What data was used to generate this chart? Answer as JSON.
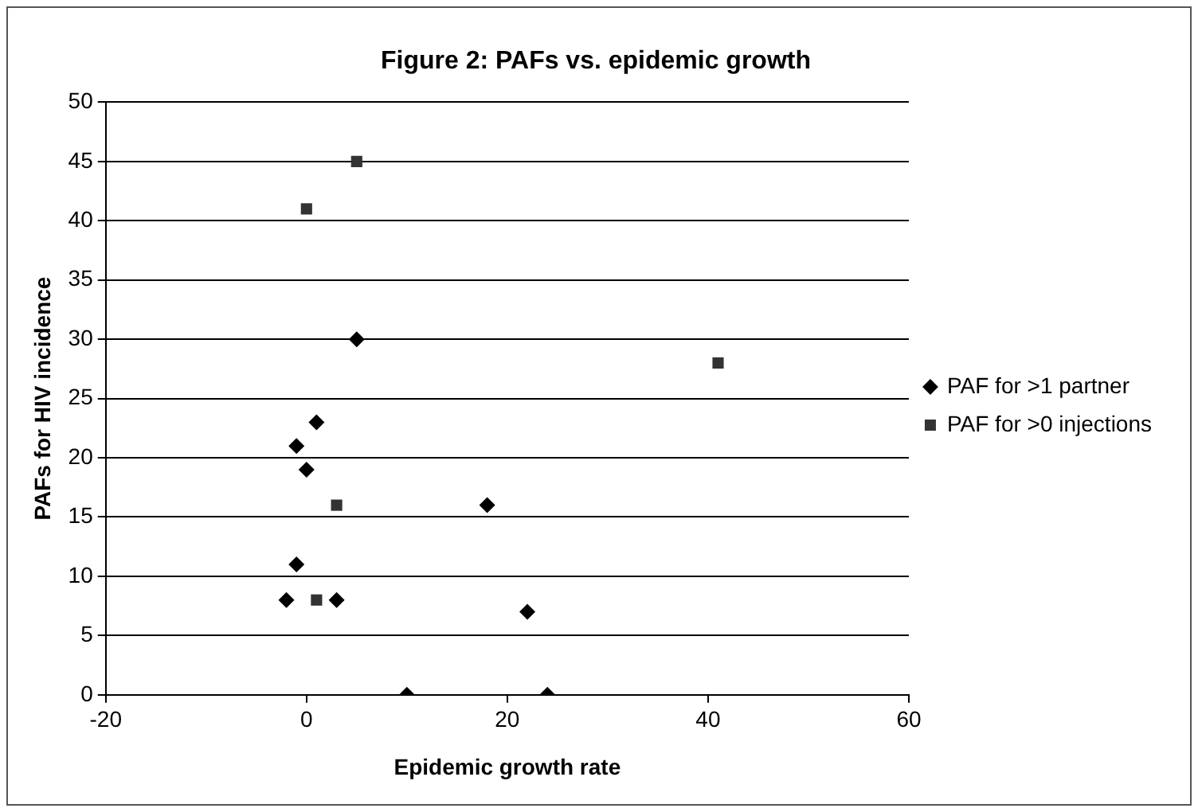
{
  "chart_data": {
    "type": "scatter",
    "title": "Figure 2: PAFs vs. epidemic growth",
    "xlabel": "Epidemic growth rate",
    "ylabel": "PAFs for HIV incidence",
    "series": [
      {
        "name": "PAF for >1 partner",
        "color": "#000000",
        "marker": "diamond",
        "x": [
          5,
          1,
          -1,
          0,
          -1,
          -2,
          3,
          10,
          24,
          18,
          22
        ],
        "values": [
          30,
          23,
          21,
          19,
          11,
          8,
          8,
          0,
          0,
          16,
          7
        ]
      },
      {
        "name": "PAF for >0 injections",
        "color": "#333333",
        "marker": "square",
        "x": [
          0,
          5,
          3,
          1,
          41
        ],
        "values": [
          41,
          45,
          16,
          8,
          28
        ]
      }
    ],
    "xlim": [
      -20,
      60
    ],
    "xticks": [
      -20,
      0,
      20,
      40,
      60
    ],
    "ylim": [
      0,
      50
    ],
    "yticks": [
      0,
      5,
      10,
      15,
      20,
      25,
      30,
      35,
      40,
      45,
      50
    ],
    "grid": "y",
    "legend": "right"
  }
}
